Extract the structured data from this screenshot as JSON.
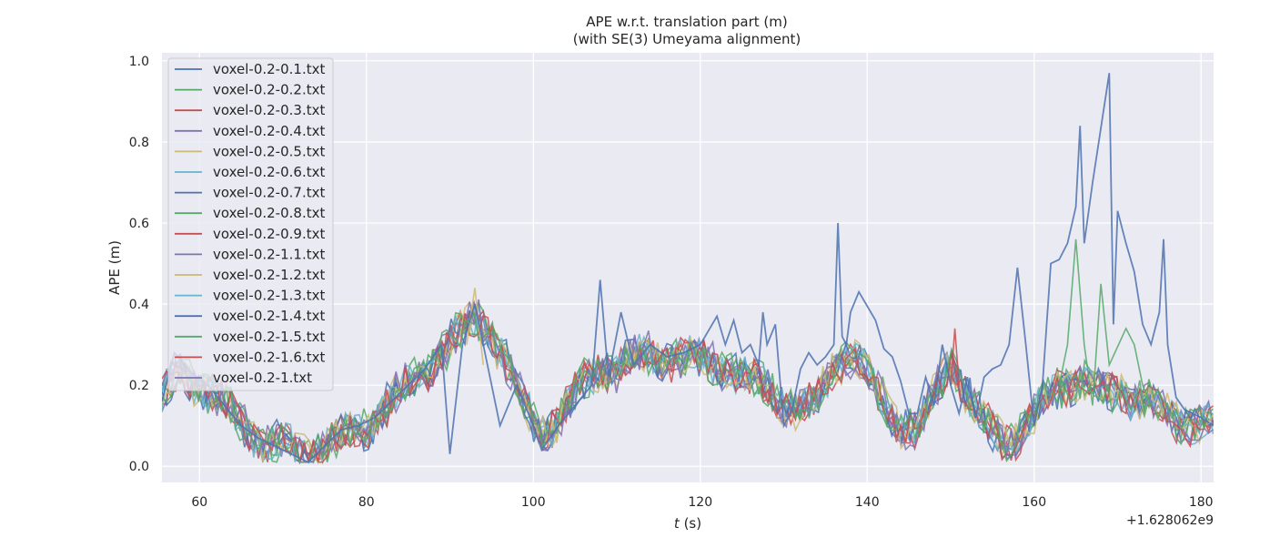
{
  "chart_data": {
    "type": "line",
    "title": "APE w.r.t. translation part (m)",
    "subtitle": "(with SE(3) Umeyama alignment)",
    "xlabel_italic": "t",
    "xlabel_unit": " (s)",
    "ylabel": "APE (m)",
    "x_offset_label": "+1.628062e9",
    "xlim": [
      55.5,
      181.5
    ],
    "ylim": [
      -0.04,
      1.02
    ],
    "xticks": [
      60,
      80,
      100,
      120,
      140,
      160,
      180
    ],
    "yticks": [
      "0.0",
      "0.2",
      "0.4",
      "0.6",
      "0.8",
      "1.0"
    ],
    "grid": true,
    "legend_position": "upper-left",
    "background": "#eaeaf2",
    "series": [
      {
        "name": "voxel-0.2-0.1.txt",
        "color": "#4c72b0"
      },
      {
        "name": "voxel-0.2-0.2.txt",
        "color": "#55a868"
      },
      {
        "name": "voxel-0.2-0.3.txt",
        "color": "#c44e52"
      },
      {
        "name": "voxel-0.2-0.4.txt",
        "color": "#8172b2"
      },
      {
        "name": "voxel-0.2-0.5.txt",
        "color": "#ccb974"
      },
      {
        "name": "voxel-0.2-0.6.txt",
        "color": "#64b5cd"
      },
      {
        "name": "voxel-0.2-0.7.txt",
        "color": "#4c72b0"
      },
      {
        "name": "voxel-0.2-0.8.txt",
        "color": "#55a868"
      },
      {
        "name": "voxel-0.2-0.9.txt",
        "color": "#c44e52"
      },
      {
        "name": "voxel-0.2-1.1.txt",
        "color": "#8172b2"
      },
      {
        "name": "voxel-0.2-1.2.txt",
        "color": "#ccb974"
      },
      {
        "name": "voxel-0.2-1.3.txt",
        "color": "#64b5cd"
      },
      {
        "name": "voxel-0.2-1.4.txt",
        "color": "#4c72b0"
      },
      {
        "name": "voxel-0.2-1.5.txt",
        "color": "#55a868"
      },
      {
        "name": "voxel-0.2-1.6.txt",
        "color": "#c44e52"
      },
      {
        "name": "voxel-0.2-1.txt",
        "color": "#8172b2"
      }
    ],
    "base_curve": [
      [
        55.5,
        0.16
      ],
      [
        58,
        0.24
      ],
      [
        60,
        0.2
      ],
      [
        62,
        0.17
      ],
      [
        64,
        0.13
      ],
      [
        66,
        0.09
      ],
      [
        68,
        0.06
      ],
      [
        70,
        0.045
      ],
      [
        72,
        0.04
      ],
      [
        74,
        0.045
      ],
      [
        76,
        0.06
      ],
      [
        78,
        0.08
      ],
      [
        80,
        0.1
      ],
      [
        82,
        0.14
      ],
      [
        84,
        0.18
      ],
      [
        86,
        0.22
      ],
      [
        88,
        0.26
      ],
      [
        90,
        0.3
      ],
      [
        92,
        0.34
      ],
      [
        93.5,
        0.37
      ],
      [
        95,
        0.33
      ],
      [
        97,
        0.24
      ],
      [
        99,
        0.15
      ],
      [
        100,
        0.11
      ],
      [
        102,
        0.1
      ],
      [
        104,
        0.14
      ],
      [
        106,
        0.2
      ],
      [
        108,
        0.25
      ],
      [
        110,
        0.24
      ],
      [
        112,
        0.26
      ],
      [
        114,
        0.28
      ],
      [
        116,
        0.27
      ],
      [
        118,
        0.26
      ],
      [
        120,
        0.26
      ],
      [
        122,
        0.26
      ],
      [
        124,
        0.23
      ],
      [
        126,
        0.2
      ],
      [
        128,
        0.2
      ],
      [
        130,
        0.16
      ],
      [
        132,
        0.13
      ],
      [
        134,
        0.16
      ],
      [
        136,
        0.26
      ],
      [
        138,
        0.27
      ],
      [
        140,
        0.22
      ],
      [
        142,
        0.16
      ],
      [
        144,
        0.11
      ],
      [
        146,
        0.08
      ],
      [
        148,
        0.17
      ],
      [
        150,
        0.27
      ],
      [
        152,
        0.17
      ],
      [
        154,
        0.1
      ],
      [
        156,
        0.07
      ],
      [
        158,
        0.08
      ],
      [
        160,
        0.12
      ],
      [
        162,
        0.18
      ],
      [
        164,
        0.21
      ],
      [
        166,
        0.21
      ],
      [
        168,
        0.17
      ],
      [
        170,
        0.19
      ],
      [
        172,
        0.17
      ],
      [
        174,
        0.15
      ],
      [
        176,
        0.12
      ],
      [
        178,
        0.11
      ],
      [
        180,
        0.11
      ],
      [
        181.5,
        0.1
      ]
    ],
    "outlier_series": {
      "series_index": 0,
      "points": [
        [
          55.5,
          0.16
        ],
        [
          57,
          0.28
        ],
        [
          59,
          0.23
        ],
        [
          61,
          0.2
        ],
        [
          63,
          0.15
        ],
        [
          65,
          0.1
        ],
        [
          67,
          0.07
        ],
        [
          69,
          0.05
        ],
        [
          71,
          0.03
        ],
        [
          73,
          0.01
        ],
        [
          75,
          0.05
        ],
        [
          77,
          0.09
        ],
        [
          79,
          0.1
        ],
        [
          81,
          0.12
        ],
        [
          83,
          0.16
        ],
        [
          85,
          0.2
        ],
        [
          87,
          0.24
        ],
        [
          89,
          0.3
        ],
        [
          90,
          0.03
        ],
        [
          91.5,
          0.3
        ],
        [
          93,
          0.4
        ],
        [
          94,
          0.3
        ],
        [
          95,
          0.2
        ],
        [
          96,
          0.1
        ],
        [
          98,
          0.2
        ],
        [
          100,
          0.1
        ],
        [
          101,
          0.04
        ],
        [
          103,
          0.1
        ],
        [
          105,
          0.15
        ],
        [
          107,
          0.2
        ],
        [
          108,
          0.46
        ],
        [
          109,
          0.22
        ],
        [
          110.5,
          0.38
        ],
        [
          112,
          0.25
        ],
        [
          114,
          0.3
        ],
        [
          116,
          0.27
        ],
        [
          118,
          0.28
        ],
        [
          120,
          0.3
        ],
        [
          122,
          0.37
        ],
        [
          123,
          0.3
        ],
        [
          124,
          0.36
        ],
        [
          125,
          0.28
        ],
        [
          126,
          0.3
        ],
        [
          127,
          0.25
        ],
        [
          127.5,
          0.38
        ],
        [
          128,
          0.3
        ],
        [
          129,
          0.35
        ],
        [
          130,
          0.1
        ],
        [
          131,
          0.14
        ],
        [
          132,
          0.24
        ],
        [
          133,
          0.28
        ],
        [
          134,
          0.25
        ],
        [
          135,
          0.27
        ],
        [
          136,
          0.3
        ],
        [
          136.5,
          0.6
        ],
        [
          137,
          0.32
        ],
        [
          137.5,
          0.3
        ],
        [
          138,
          0.38
        ],
        [
          139,
          0.43
        ],
        [
          141,
          0.36
        ],
        [
          142,
          0.29
        ],
        [
          143,
          0.27
        ],
        [
          144,
          0.21
        ],
        [
          145,
          0.13
        ],
        [
          146,
          0.13
        ],
        [
          147,
          0.22
        ],
        [
          148,
          0.15
        ],
        [
          149,
          0.3
        ],
        [
          150,
          0.2
        ],
        [
          151,
          0.13
        ],
        [
          152,
          0.22
        ],
        [
          153,
          0.12
        ],
        [
          154,
          0.22
        ],
        [
          155,
          0.24
        ],
        [
          156,
          0.25
        ],
        [
          157,
          0.3
        ],
        [
          158,
          0.49
        ],
        [
          159,
          0.3
        ],
        [
          160,
          0.1
        ],
        [
          161,
          0.2
        ],
        [
          162,
          0.5
        ],
        [
          163,
          0.51
        ],
        [
          164,
          0.55
        ],
        [
          165,
          0.64
        ],
        [
          165.5,
          0.84
        ],
        [
          166,
          0.55
        ],
        [
          167,
          0.7
        ],
        [
          169,
          0.97
        ],
        [
          169.5,
          0.35
        ],
        [
          170,
          0.63
        ],
        [
          171,
          0.55
        ],
        [
          172,
          0.48
        ],
        [
          173,
          0.35
        ],
        [
          174,
          0.3
        ],
        [
          175,
          0.38
        ],
        [
          175.5,
          0.56
        ],
        [
          176,
          0.3
        ],
        [
          177,
          0.17
        ],
        [
          178,
          0.14
        ],
        [
          179,
          0.13
        ],
        [
          180,
          0.12
        ],
        [
          181.5,
          0.1
        ]
      ]
    },
    "spikes": [
      {
        "series_index": 1,
        "points": [
          [
            163,
            0.2
          ],
          [
            164,
            0.3
          ],
          [
            165,
            0.56
          ],
          [
            166,
            0.3
          ],
          [
            167,
            0.15
          ],
          [
            168,
            0.45
          ],
          [
            169,
            0.25
          ],
          [
            171,
            0.34
          ],
          [
            172,
            0.3
          ],
          [
            173,
            0.2
          ],
          [
            174,
            0.15
          ]
        ]
      },
      {
        "series_index": 4,
        "points": [
          [
            94,
            0.25
          ],
          [
            93,
            0.44
          ],
          [
            92,
            0.3
          ]
        ]
      },
      {
        "series_index": 2,
        "points": [
          [
            150,
            0.2
          ],
          [
            150.5,
            0.34
          ],
          [
            151,
            0.2
          ]
        ]
      }
    ]
  }
}
